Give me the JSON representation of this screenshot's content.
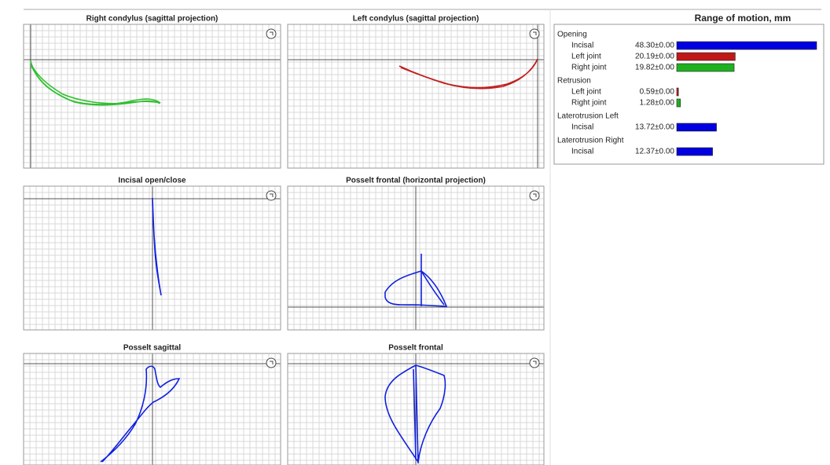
{
  "panels": [
    {
      "title": "Right condylus (sagittal projection)"
    },
    {
      "title": "Left condylus (sagittal projection)"
    },
    {
      "title": "Incisal open/close"
    },
    {
      "title": "Posselt frontal (horizontal projection)"
    },
    {
      "title": "Posselt sagittal"
    },
    {
      "title": "Posselt frontal"
    }
  ],
  "motion": {
    "title": "Range of motion, mm",
    "groups": [
      {
        "name": "Opening",
        "rows": [
          {
            "label": "Incisal",
            "value": 48.3,
            "value_label": "48.30±0.00",
            "color": "#0000e0"
          },
          {
            "label": "Left joint",
            "value": 20.19,
            "value_label": "20.19±0.00",
            "color": "#c01818"
          },
          {
            "label": "Right joint",
            "value": 19.82,
            "value_label": "19.82±0.00",
            "color": "#20b020"
          }
        ]
      },
      {
        "name": "Retrusion",
        "rows": [
          {
            "label": "Left joint",
            "value": 0.59,
            "value_label": "0.59±0.00",
            "color": "#c01818"
          },
          {
            "label": "Right joint",
            "value": 1.28,
            "value_label": "1.28±0.00",
            "color": "#20b020"
          }
        ]
      },
      {
        "name": "Laterotrusion Left",
        "rows": [
          {
            "label": "Incisal",
            "value": 13.72,
            "value_label": "13.72±0.00",
            "color": "#0000e0"
          }
        ]
      },
      {
        "name": "Laterotrusion Right",
        "rows": [
          {
            "label": "Incisal",
            "value": 12.37,
            "value_label": "12.37±0.00",
            "color": "#0000e0"
          }
        ]
      }
    ]
  }
}
